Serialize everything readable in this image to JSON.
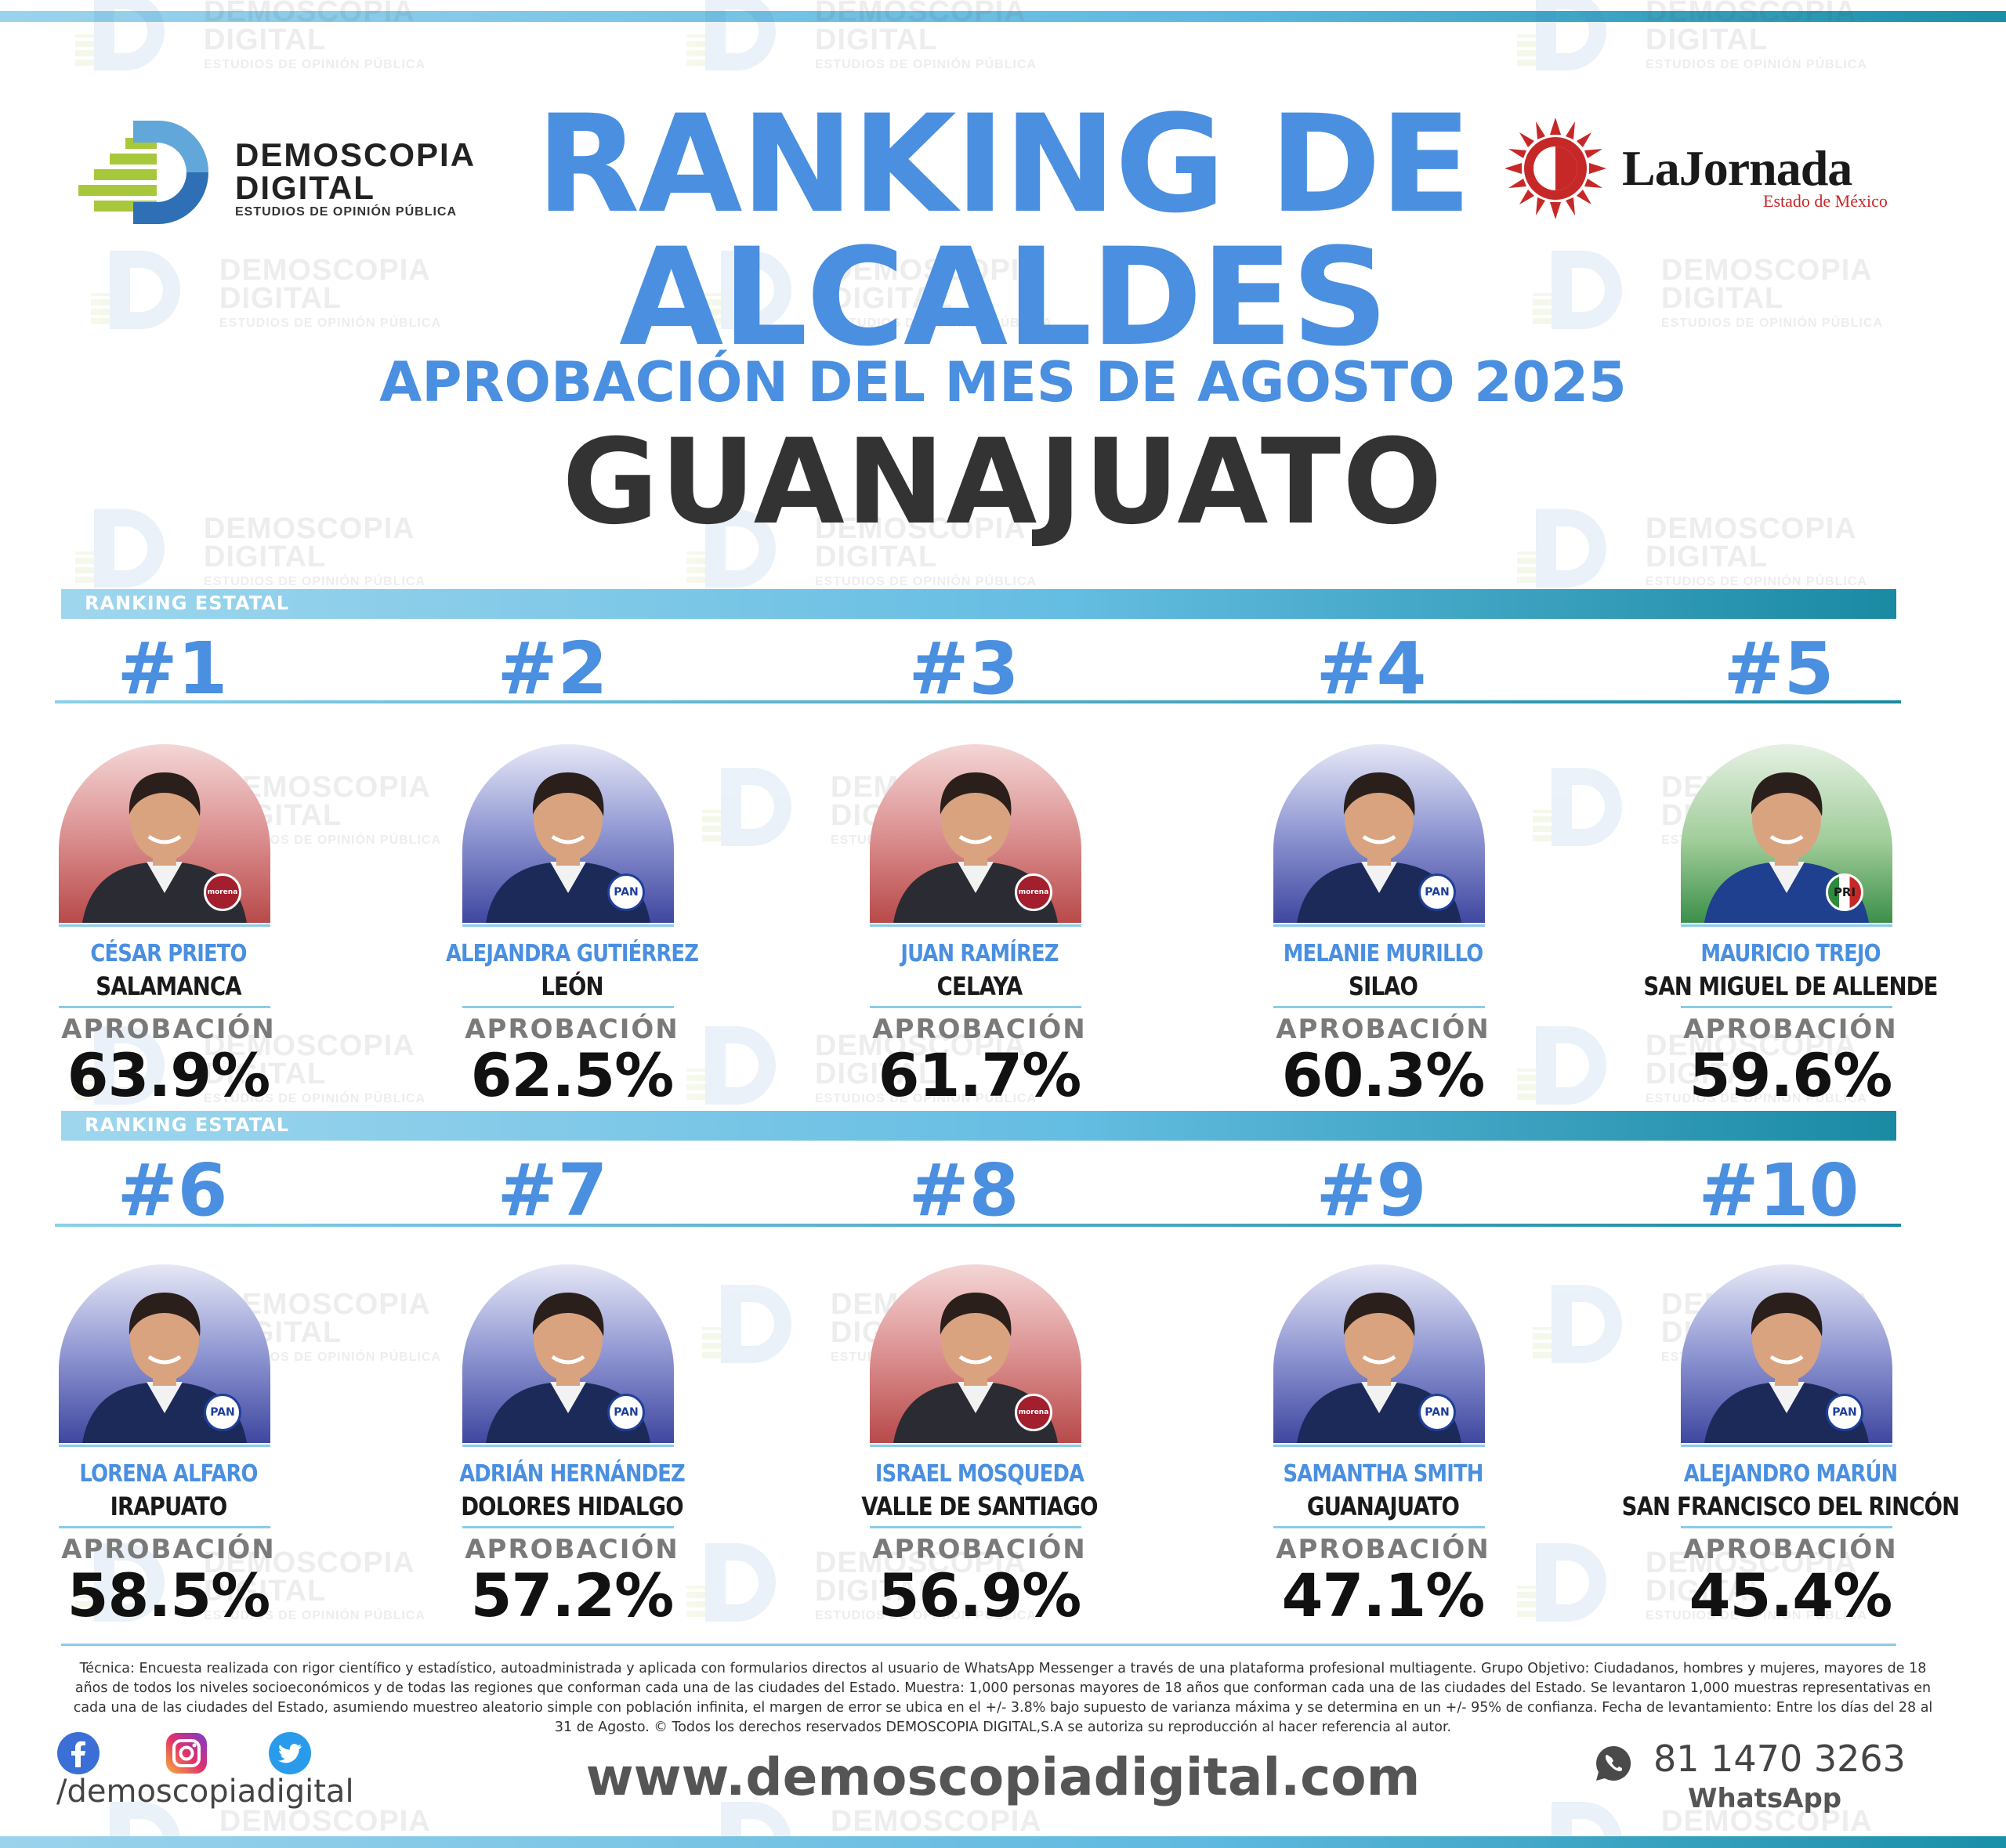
{
  "watermark": {
    "line1": "DEMOSCOPIA",
    "line2": "DIGITAL",
    "line3": "ESTUDIOS DE OPINIÓN PÚBLICA"
  },
  "logos": {
    "demoscopia": {
      "line1": "DEMOSCOPIA",
      "line2": "DIGITAL",
      "line3": "ESTUDIOS DE OPINIÓN PÚBLICA"
    },
    "jornada": {
      "name": "LaJornada",
      "sub": "Estado de México"
    }
  },
  "header": {
    "title_line1": "RANKING DE",
    "title_line2": "ALCALDES",
    "subtitle": "APROBACIÓN DEL MES DE AGOSTO 2025",
    "state": "GUANAJUATO"
  },
  "section_label": "RANKING ESTATAL",
  "approval_label": "APROBACIÓN",
  "colors": {
    "accent_blue": "#4a8fe0",
    "teal": "#1a8aa3",
    "portrait_red": "#b84a4a",
    "portrait_blue": "#3f47a0",
    "portrait_green": "#3c8f4a"
  },
  "rankings": [
    {
      "rank": "#1",
      "name": "CÉSAR PRIETO",
      "city": "SALAMANCA",
      "approval": "63.9%",
      "party": "morena",
      "bg": "red"
    },
    {
      "rank": "#2",
      "name": "ALEJANDRA GUTIÉRREZ",
      "city": "LEÓN",
      "approval": "62.5%",
      "party": "PAN",
      "bg": "blue"
    },
    {
      "rank": "#3",
      "name": "JUAN RAMÍREZ",
      "city": "CELAYA",
      "approval": "61.7%",
      "party": "morena",
      "bg": "red"
    },
    {
      "rank": "#4",
      "name": "MELANIE MURILLO",
      "city": "SILAO",
      "approval": "60.3%",
      "party": "PAN",
      "bg": "blue"
    },
    {
      "rank": "#5",
      "name": "MAURICIO TREJO",
      "city": "SAN MIGUEL DE ALLENDE",
      "approval": "59.6%",
      "party": "PRI",
      "bg": "green"
    },
    {
      "rank": "#6",
      "name": "LORENA ALFARO",
      "city": "IRAPUATO",
      "approval": "58.5%",
      "party": "PAN",
      "bg": "blue"
    },
    {
      "rank": "#7",
      "name": "ADRIÁN HERNÁNDEZ",
      "city": "DOLORES HIDALGO",
      "approval": "57.2%",
      "party": "PAN",
      "bg": "blue"
    },
    {
      "rank": "#8",
      "name": "ISRAEL MOSQUEDA",
      "city": "VALLE DE SANTIAGO",
      "approval": "56.9%",
      "party": "morena",
      "bg": "red"
    },
    {
      "rank": "#9",
      "name": "SAMANTHA SMITH",
      "city": "GUANAJUATO",
      "approval": "47.1%",
      "party": "PAN",
      "bg": "blue"
    },
    {
      "rank": "#10",
      "name": "ALEJANDRO MARÚN",
      "city": "SAN FRANCISCO DEL RINCÓN",
      "approval": "45.4%",
      "party": "PAN",
      "bg": "blue"
    }
  ],
  "footer": {
    "methodology": "Técnica: Encuesta realizada con rigor científico y estadístico, autoadministrada y aplicada con formularios directos al usuario de WhatsApp Messenger a través de una plataforma profesional multiagente. Grupo Objetivo: Ciudadanos, hombres y mujeres, mayores de 18 años de todos los niveles socioeconómicos y de todas las regiones que conforman cada una de las ciudades del Estado. Muestra: 1,000 personas mayores de 18 años que conforman cada una de las ciudades del Estado. Se levantaron 1,000 muestras representativas en cada una de las ciudades del Estado, asumiendo muestreo aleatorio simple con población infinita, el margen de error se ubica en el +/- 3.8% bajo supuesto de varianza máxima y se determina en un +/- 95% de confianza. Fecha de levantamiento: Entre los días del 28 al 31 de Agosto. © Todos los derechos reservados DEMOSCOPIA DIGITAL,S.A se autoriza su reproducción al hacer referencia al autor.",
    "handle": "/demoscopiadigital",
    "website": "www.demoscopiadigital.com",
    "phone": "81 1470 3263",
    "whatsapp_label": "WhatsApp",
    "social_icons": [
      "facebook-icon",
      "instagram-icon",
      "twitter-icon"
    ]
  }
}
